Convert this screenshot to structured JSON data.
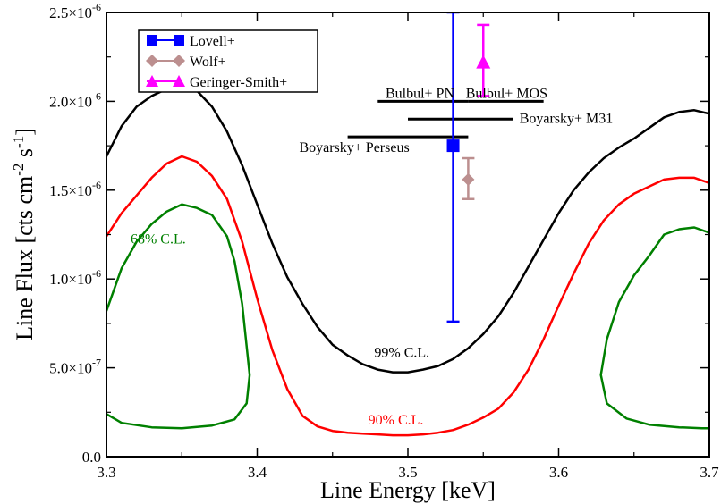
{
  "chart_data": {
    "type": "line",
    "xlabel": "Line Energy [keV]",
    "ylabel_parts": {
      "main": "Line Flux [cts cm",
      "exp1": "-2",
      "mid": " s",
      "exp2": "-1",
      "end": "]"
    },
    "xlim": [
      3.3,
      3.7
    ],
    "ylim": [
      0,
      2.5e-06
    ],
    "x_ticks": [
      {
        "value": 3.3,
        "label": "3.3"
      },
      {
        "value": 3.4,
        "label": "3.4"
      },
      {
        "value": 3.5,
        "label": "3.5"
      },
      {
        "value": 3.6,
        "label": "3.6"
      },
      {
        "value": 3.7,
        "label": "3.7"
      }
    ],
    "y_ticks": [
      {
        "value": 0,
        "mantissa": "0.0",
        "exp": ""
      },
      {
        "value": 5e-07,
        "mantissa": "5.0×10",
        "exp": "-7"
      },
      {
        "value": 1e-06,
        "mantissa": "1.0×10",
        "exp": "-6"
      },
      {
        "value": 1.5e-06,
        "mantissa": "1.5×10",
        "exp": "-6"
      },
      {
        "value": 2e-06,
        "mantissa": "2.0×10",
        "exp": "-6"
      },
      {
        "value": 2.5e-06,
        "mantissa": "2.5×10",
        "exp": "-6"
      }
    ],
    "grid": false,
    "legend_position": "top-left",
    "contours": [
      {
        "label": "99% C.L.",
        "color": "#000000",
        "label_pos": {
          "x": 3.496,
          "y": 5.6e-07
        },
        "points": [
          [
            3.3,
            1.69e-06
          ],
          [
            3.31,
            1.86e-06
          ],
          [
            3.32,
            1.97e-06
          ],
          [
            3.33,
            2.03e-06
          ],
          [
            3.34,
            2.07e-06
          ],
          [
            3.35,
            2.08e-06
          ],
          [
            3.36,
            2.06e-06
          ],
          [
            3.37,
            1.97e-06
          ],
          [
            3.38,
            1.83e-06
          ],
          [
            3.39,
            1.64e-06
          ],
          [
            3.4,
            1.42e-06
          ],
          [
            3.41,
            1.2e-06
          ],
          [
            3.42,
            1.01e-06
          ],
          [
            3.43,
            8.6e-07
          ],
          [
            3.44,
            7.3e-07
          ],
          [
            3.45,
            6.3e-07
          ],
          [
            3.46,
            5.7e-07
          ],
          [
            3.47,
            5.2e-07
          ],
          [
            3.48,
            4.9e-07
          ],
          [
            3.49,
            4.75e-07
          ],
          [
            3.5,
            4.75e-07
          ],
          [
            3.51,
            4.9e-07
          ],
          [
            3.52,
            5.1e-07
          ],
          [
            3.53,
            5.5e-07
          ],
          [
            3.54,
            6.1e-07
          ],
          [
            3.55,
            6.9e-07
          ],
          [
            3.56,
            7.9e-07
          ],
          [
            3.57,
            9.2e-07
          ],
          [
            3.58,
            1.07e-06
          ],
          [
            3.59,
            1.22e-06
          ],
          [
            3.6,
            1.37e-06
          ],
          [
            3.61,
            1.5e-06
          ],
          [
            3.62,
            1.6e-06
          ],
          [
            3.63,
            1.68e-06
          ],
          [
            3.64,
            1.74e-06
          ],
          [
            3.65,
            1.79e-06
          ],
          [
            3.66,
            1.85e-06
          ],
          [
            3.67,
            1.91e-06
          ],
          [
            3.68,
            1.94e-06
          ],
          [
            3.69,
            1.95e-06
          ],
          [
            3.7,
            1.93e-06
          ]
        ]
      },
      {
        "label": "90% C.L.",
        "color": "#ff0000",
        "label_pos": {
          "x": 3.492,
          "y": 1.8e-07
        },
        "points": [
          [
            3.3,
            1.24e-06
          ],
          [
            3.31,
            1.37e-06
          ],
          [
            3.32,
            1.47e-06
          ],
          [
            3.33,
            1.57e-06
          ],
          [
            3.34,
            1.65e-06
          ],
          [
            3.35,
            1.69e-06
          ],
          [
            3.36,
            1.66e-06
          ],
          [
            3.37,
            1.58e-06
          ],
          [
            3.38,
            1.45e-06
          ],
          [
            3.39,
            1.21e-06
          ],
          [
            3.4,
            8.9e-07
          ],
          [
            3.41,
            6e-07
          ],
          [
            3.42,
            3.8e-07
          ],
          [
            3.43,
            2.3e-07
          ],
          [
            3.44,
            1.7e-07
          ],
          [
            3.45,
            1.45e-07
          ],
          [
            3.46,
            1.35e-07
          ],
          [
            3.47,
            1.3e-07
          ],
          [
            3.48,
            1.25e-07
          ],
          [
            3.49,
            1.2e-07
          ],
          [
            3.5,
            1.2e-07
          ],
          [
            3.51,
            1.25e-07
          ],
          [
            3.52,
            1.35e-07
          ],
          [
            3.53,
            1.5e-07
          ],
          [
            3.54,
            1.8e-07
          ],
          [
            3.55,
            2.2e-07
          ],
          [
            3.56,
            2.7e-07
          ],
          [
            3.57,
            3.6e-07
          ],
          [
            3.58,
            4.9e-07
          ],
          [
            3.59,
            6.6e-07
          ],
          [
            3.6,
            8.5e-07
          ],
          [
            3.61,
            1.03e-06
          ],
          [
            3.62,
            1.2e-06
          ],
          [
            3.63,
            1.33e-06
          ],
          [
            3.64,
            1.42e-06
          ],
          [
            3.65,
            1.48e-06
          ],
          [
            3.66,
            1.52e-06
          ],
          [
            3.67,
            1.56e-06
          ],
          [
            3.68,
            1.57e-06
          ],
          [
            3.69,
            1.57e-06
          ],
          [
            3.7,
            1.54e-06
          ]
        ]
      },
      {
        "label": "68% C.L.",
        "color": "#008000",
        "label_pos": {
          "x": 3.316,
          "y": 1.2e-06
        },
        "points": [
          [
            3.3,
            8.2e-07
          ],
          [
            3.31,
            1.06e-06
          ],
          [
            3.32,
            1.21e-06
          ],
          [
            3.33,
            1.31e-06
          ],
          [
            3.34,
            1.38e-06
          ],
          [
            3.35,
            1.42e-06
          ],
          [
            3.36,
            1.4e-06
          ],
          [
            3.37,
            1.36e-06
          ],
          [
            3.38,
            1.24e-06
          ],
          [
            3.385,
            1.1e-06
          ],
          [
            3.39,
            8.6e-07
          ],
          [
            3.395,
            4.6e-07
          ],
          [
            3.393,
            3e-07
          ],
          [
            3.385,
            2.1e-07
          ],
          [
            3.37,
            1.75e-07
          ],
          [
            3.35,
            1.6e-07
          ],
          [
            3.33,
            1.65e-07
          ],
          [
            3.31,
            1.9e-07
          ],
          [
            3.3,
            2.4e-07
          ]
        ]
      },
      {
        "label": "",
        "color": "#008000",
        "points": [
          [
            3.7,
            1.26e-06
          ],
          [
            3.69,
            1.29e-06
          ],
          [
            3.68,
            1.28e-06
          ],
          [
            3.67,
            1.25e-06
          ],
          [
            3.66,
            1.13e-06
          ],
          [
            3.65,
            1.02e-06
          ],
          [
            3.64,
            8.7e-07
          ],
          [
            3.632,
            6.6e-07
          ],
          [
            3.628,
            4.6e-07
          ],
          [
            3.632,
            3e-07
          ],
          [
            3.645,
            2.15e-07
          ],
          [
            3.66,
            1.8e-07
          ],
          [
            3.68,
            1.65e-07
          ],
          [
            3.695,
            1.6e-07
          ],
          [
            3.7,
            1.6e-07
          ]
        ]
      }
    ],
    "series": [
      {
        "name": "Lovell+",
        "color": "#0000ff",
        "marker": "square",
        "x": 3.53,
        "y": 1.75e-06,
        "yerr_low": 7.6e-07,
        "yerr_high": 2.5e-06
      },
      {
        "name": "Wolf+",
        "color": "#bc8f8f",
        "marker": "diamond",
        "x": 3.54,
        "y": 1.56e-06,
        "yerr_low": 1.45e-06,
        "yerr_high": 1.68e-06
      },
      {
        "name": "Geringer-Smith+",
        "color": "#ff00ff",
        "marker": "triangle",
        "x": 3.55,
        "y": 2.22e-06,
        "yerr_low": 2.03e-06,
        "yerr_high": 2.43e-06
      }
    ],
    "hbars": [
      {
        "label": "Bulbul+ PN",
        "x_min": 3.48,
        "x_max": 3.54,
        "y": 2e-06,
        "label_x": 3.508,
        "label_y": 2.02e-06,
        "anchor": "middle"
      },
      {
        "label": "Bulbul+ MOS",
        "x_min": 3.54,
        "x_max": 3.59,
        "y": 2e-06,
        "label_x": 3.5655,
        "label_y": 2.02e-06,
        "anchor": "middle"
      },
      {
        "label": "Boyarsky+ M31",
        "x_min": 3.5,
        "x_max": 3.57,
        "y": 1.9e-06,
        "label_x": 3.574,
        "label_y": 1.88e-06,
        "anchor": "start"
      },
      {
        "label": "Boyarsky+ Perseus",
        "x_min": 3.46,
        "x_max": 3.54,
        "y": 1.8e-06,
        "label_x": 3.501,
        "label_y": 1.715e-06,
        "anchor": "end"
      }
    ]
  }
}
